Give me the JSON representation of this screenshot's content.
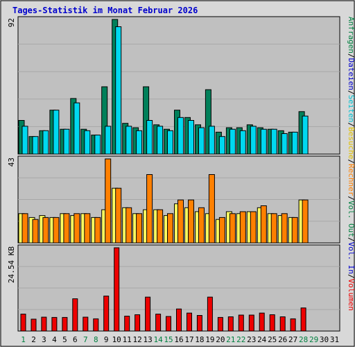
{
  "title": "Tages-Statistik im Monat Februar 2026",
  "colors": {
    "frame_bg": "#d8d8d8",
    "plot_bg": "#c0c0c0",
    "grid": "#a8a8a8",
    "title": "#0000cc",
    "anfragen": "#00805a",
    "dateien": "#00d8f0",
    "seiten": "#00d8f0",
    "besuche": "#ffff60",
    "rechner": "#ff8000",
    "kbytes": "#ee0000",
    "weekday": "#000000",
    "weekend": "#008040"
  },
  "right_legends": {
    "top": [
      {
        "text": "Anfragen",
        "color": "#008040"
      },
      {
        "text": "/",
        "color": "#000000"
      },
      {
        "text": "Dateien",
        "color": "#0000cc"
      },
      {
        "text": "/",
        "color": "#000000"
      },
      {
        "text": "Seiten",
        "color": "#00c0d0"
      },
      {
        "text": "/",
        "color": "#000000"
      },
      {
        "text": "Besuche",
        "color": "#e0c000"
      },
      {
        "text": "/",
        "color": "#000000"
      },
      {
        "text": "Rechner",
        "color": "#ff8000"
      },
      {
        "text": "/",
        "color": "#000000"
      },
      {
        "text": "Vol. Out",
        "color": "#008040"
      },
      {
        "text": "/",
        "color": "#000000"
      },
      {
        "text": "Vol. In",
        "color": "#0000cc"
      },
      {
        "text": "/",
        "color": "#000000"
      },
      {
        "text": "Volumen",
        "color": "#ee0000"
      }
    ]
  },
  "chart_data": [
    {
      "type": "bar",
      "panel": "hits",
      "ymax_label": "92",
      "ylim": [
        0,
        92
      ],
      "categories": [
        "1",
        "2",
        "3",
        "4",
        "5",
        "6",
        "7",
        "8",
        "9",
        "10",
        "11",
        "12",
        "13",
        "14",
        "15",
        "16",
        "17",
        "18",
        "19",
        "20",
        "21",
        "22",
        "23",
        "24",
        "25",
        "26",
        "27",
        "28",
        "29",
        "30",
        "31"
      ],
      "weekend_days": [
        "1",
        "7",
        "8",
        "14",
        "15",
        "21",
        "22",
        "28",
        "29"
      ],
      "series": [
        {
          "name": "Anfragen",
          "values": [
            23,
            12,
            16,
            30,
            17,
            38,
            17,
            13,
            46,
            92,
            21,
            18,
            46,
            20,
            17,
            30,
            25,
            20,
            44,
            15,
            18,
            18,
            20,
            18,
            17,
            16,
            15,
            29,
            null,
            null,
            null
          ]
        },
        {
          "name": "Dateien",
          "values": [
            19,
            12,
            16,
            30,
            17,
            35,
            16,
            13,
            19,
            87,
            19,
            16,
            23,
            19,
            16,
            25,
            23,
            18,
            19,
            12,
            17,
            16,
            19,
            17,
            17,
            14,
            15,
            26,
            null,
            null,
            null
          ]
        },
        {
          "name": "Seiten",
          "values": [
            null,
            null,
            null,
            null,
            null,
            null,
            null,
            null,
            null,
            null,
            null,
            null,
            null,
            null,
            null,
            null,
            null,
            null,
            null,
            null,
            null,
            null,
            null,
            null,
            null,
            null,
            null,
            null,
            null,
            null,
            null
          ]
        }
      ]
    },
    {
      "type": "bar",
      "panel": "visits",
      "ymax_label": "43",
      "ylim": [
        0,
        43
      ],
      "categories": [
        "1",
        "2",
        "3",
        "4",
        "5",
        "6",
        "7",
        "8",
        "9",
        "10",
        "11",
        "12",
        "13",
        "14",
        "15",
        "16",
        "17",
        "18",
        "19",
        "20",
        "21",
        "22",
        "23",
        "24",
        "25",
        "26",
        "27",
        "28",
        "29",
        "30",
        "31"
      ],
      "series": [
        {
          "name": "Besuche",
          "values": [
            15,
            13,
            14,
            13,
            15,
            14,
            15,
            13,
            17,
            28,
            18,
            15,
            17,
            17,
            14,
            20,
            18,
            16,
            15,
            12,
            16,
            15,
            16,
            18,
            15,
            14,
            13,
            22,
            null,
            null,
            null
          ]
        },
        {
          "name": "Rechner",
          "values": [
            15,
            12,
            13,
            13,
            15,
            15,
            15,
            13,
            43,
            28,
            18,
            15,
            35,
            17,
            15,
            22,
            22,
            18,
            35,
            13,
            15,
            16,
            16,
            19,
            15,
            15,
            13,
            22,
            null,
            null,
            null
          ]
        }
      ]
    },
    {
      "type": "bar",
      "panel": "kbytes",
      "ymax_label": "24.54 KB",
      "ylim": [
        0,
        24.54
      ],
      "categories": [
        "1",
        "2",
        "3",
        "4",
        "5",
        "6",
        "7",
        "8",
        "9",
        "10",
        "11",
        "12",
        "13",
        "14",
        "15",
        "16",
        "17",
        "18",
        "19",
        "20",
        "21",
        "22",
        "23",
        "24",
        "25",
        "26",
        "27",
        "28",
        "29",
        "30",
        "31"
      ],
      "series": [
        {
          "name": "Volumen",
          "values": [
            5.0,
            3.5,
            4.1,
            4.0,
            4.0,
            9.5,
            4.1,
            3.6,
            10.3,
            24.54,
            4.4,
            4.8,
            10.0,
            5.0,
            4.3,
            6.5,
            5.3,
            4.6,
            10.0,
            4.0,
            4.2,
            4.7,
            4.7,
            5.3,
            4.8,
            4.2,
            3.6,
            6.8,
            null,
            null,
            null
          ]
        }
      ]
    }
  ]
}
